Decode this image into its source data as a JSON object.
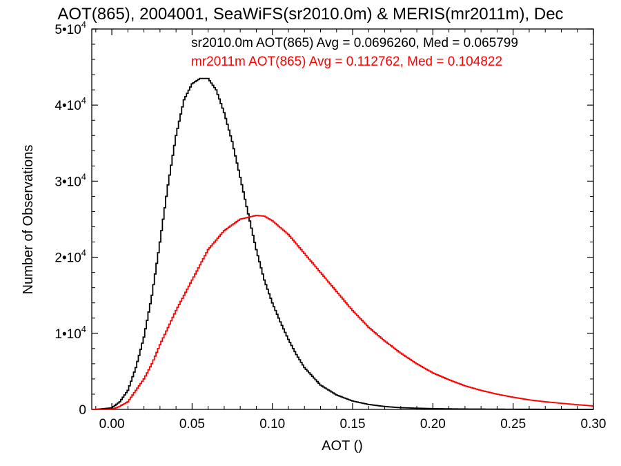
{
  "chart_data": {
    "type": "line",
    "title": "AOT(865), 2004001, SeaWiFS(sr2010.0m) & MERIS(mr2011m), Dec",
    "xlabel": "AOT ()",
    "ylabel": "Number of Observations",
    "xlim": [
      -0.0125,
      0.3
    ],
    "ylim": [
      0,
      50000
    ],
    "x_ticks": [
      0.0,
      0.05,
      0.1,
      0.15,
      0.2,
      0.25,
      0.3
    ],
    "x_tick_labels": [
      "0.00",
      "0.05",
      "0.10",
      "0.15",
      "0.20",
      "0.25",
      "0.30"
    ],
    "y_ticks": [
      {
        "value": 0,
        "mant": "0",
        "exp": ""
      },
      {
        "value": 10000,
        "mant": "1•10",
        "exp": "4"
      },
      {
        "value": 20000,
        "mant": "2•10",
        "exp": "4"
      },
      {
        "value": 30000,
        "mant": "3•10",
        "exp": "4"
      },
      {
        "value": 40000,
        "mant": "4•10",
        "exp": "4"
      },
      {
        "value": 50000,
        "mant": "5•10",
        "exp": "4"
      }
    ],
    "grid": false,
    "legend_position": "top-right",
    "series": [
      {
        "name": "sr2010.0m AOT(865) Avg = 0.0696260, Med = 0.065799",
        "color": "#000000",
        "x": [
          -0.01,
          0.0,
          0.005,
          0.01,
          0.015,
          0.02,
          0.025,
          0.03,
          0.035,
          0.04,
          0.045,
          0.05,
          0.055,
          0.06,
          0.065,
          0.07,
          0.075,
          0.08,
          0.085,
          0.09,
          0.095,
          0.1,
          0.105,
          0.11,
          0.115,
          0.12,
          0.13,
          0.14,
          0.15,
          0.16,
          0.17,
          0.18,
          0.2,
          0.22,
          0.25,
          0.3
        ],
        "y": [
          0,
          200,
          1000,
          2500,
          5500,
          9500,
          15000,
          22000,
          29500,
          36000,
          40700,
          42800,
          43500,
          43500,
          42000,
          39000,
          35200,
          30500,
          25700,
          21000,
          17000,
          14000,
          11500,
          9200,
          7200,
          5500,
          3200,
          1900,
          1100,
          650,
          380,
          220,
          100,
          50,
          20,
          5
        ]
      },
      {
        "name": "mr2011m AOT(865) Avg = 0.112762, Med = 0.104822",
        "color": "#ff0000",
        "x": [
          -0.01,
          0.0,
          0.005,
          0.01,
          0.015,
          0.02,
          0.025,
          0.03,
          0.04,
          0.05,
          0.06,
          0.07,
          0.08,
          0.09,
          0.095,
          0.1,
          0.11,
          0.12,
          0.13,
          0.14,
          0.15,
          0.16,
          0.17,
          0.18,
          0.19,
          0.2,
          0.21,
          0.22,
          0.23,
          0.24,
          0.25,
          0.26,
          0.27,
          0.28,
          0.29,
          0.3
        ],
        "y": [
          0,
          0,
          400,
          1000,
          2500,
          4000,
          6000,
          8500,
          13000,
          17000,
          21000,
          23500,
          25000,
          25500,
          25400,
          24800,
          23000,
          20500,
          18000,
          15500,
          13000,
          10800,
          9000,
          7400,
          6000,
          4800,
          3900,
          3100,
          2500,
          2000,
          1600,
          1250,
          1000,
          800,
          620,
          450
        ]
      }
    ]
  }
}
